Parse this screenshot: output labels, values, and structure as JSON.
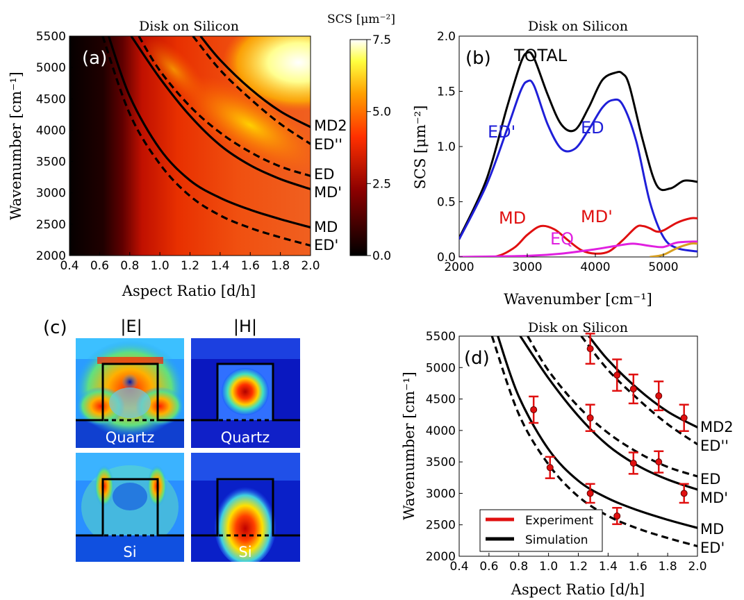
{
  "figure": {
    "width": 1071,
    "height": 864
  },
  "chart_data": [
    {
      "id": "a",
      "type": "heatmap",
      "panel_label": "(a)",
      "title": "Disk on Silicon",
      "xlabel": "Aspect Ratio [d/h]",
      "ylabel": "Wavenumber [cm⁻¹]",
      "xlim": [
        0.4,
        2.0
      ],
      "ylim": [
        2000,
        5500
      ],
      "xticks": [
        "0.4",
        "0.6",
        "0.8",
        "1.0",
        "1.2",
        "1.4",
        "1.6",
        "1.8",
        "2.0"
      ],
      "yticks": [
        "2000",
        "2500",
        "3000",
        "3500",
        "4000",
        "4500",
        "5000",
        "5500"
      ],
      "colorbar": {
        "title": "SCS [μm⁻²]",
        "min": 0.0,
        "max": 7.5,
        "ticks": [
          "0.0",
          "2.5",
          "5.0",
          "7.5"
        ]
      },
      "curves": [
        {
          "name": "MD2",
          "style": "solid",
          "points": [
            [
              1.27,
              5500
            ],
            [
              1.4,
              5120
            ],
            [
              1.6,
              4660
            ],
            [
              1.8,
              4300
            ],
            [
              2.0,
              4050
            ]
          ]
        },
        {
          "name": "ED''",
          "style": "dashed",
          "points": [
            [
              1.22,
              5500
            ],
            [
              1.4,
              4960
            ],
            [
              1.6,
              4500
            ],
            [
              1.8,
              4100
            ],
            [
              2.0,
              3780
            ]
          ]
        },
        {
          "name": "ED",
          "style": "dashed",
          "points": [
            [
              0.86,
              5500
            ],
            [
              1.0,
              4950
            ],
            [
              1.2,
              4380
            ],
            [
              1.4,
              3960
            ],
            [
              1.6,
              3650
            ],
            [
              1.8,
              3420
            ],
            [
              2.0,
              3270
            ]
          ]
        },
        {
          "name": "MD'",
          "style": "solid",
          "points": [
            [
              0.81,
              5500
            ],
            [
              1.0,
              4830
            ],
            [
              1.2,
              4230
            ],
            [
              1.4,
              3760
            ],
            [
              1.6,
              3440
            ],
            [
              1.8,
              3220
            ],
            [
              2.0,
              3060
            ]
          ]
        },
        {
          "name": "MD",
          "style": "solid",
          "points": [
            [
              0.66,
              5500
            ],
            [
              0.8,
              4540
            ],
            [
              1.0,
              3700
            ],
            [
              1.2,
              3200
            ],
            [
              1.4,
              2920
            ],
            [
              1.6,
              2730
            ],
            [
              1.8,
              2580
            ],
            [
              2.0,
              2450
            ]
          ]
        },
        {
          "name": "ED'",
          "style": "dashed",
          "points": [
            [
              0.62,
              5500
            ],
            [
              0.8,
              4260
            ],
            [
              1.0,
              3460
            ],
            [
              1.2,
              2950
            ],
            [
              1.4,
              2640
            ],
            [
              1.6,
              2440
            ],
            [
              1.8,
              2290
            ],
            [
              2.0,
              2160
            ]
          ]
        }
      ],
      "curve_labels": [
        "MD2",
        "ED''",
        "ED",
        "MD'",
        "MD",
        "ED'"
      ]
    },
    {
      "id": "b",
      "type": "line",
      "panel_label": "(b)",
      "title": "Disk on Silicon",
      "xlabel": "Wavenumber [cm⁻¹]",
      "ylabel": "SCS [μm⁻²]",
      "xlim": [
        2000,
        5500
      ],
      "ylim": [
        0.0,
        2.0
      ],
      "xticks": [
        "2000",
        "3000",
        "4000",
        "5000"
      ],
      "yticks": [
        "0.0",
        "0.5",
        "1.0",
        "1.5",
        "2.0"
      ],
      "series": [
        {
          "name": "TOTAL",
          "color": "#000000",
          "x": [
            2000,
            2400,
            2700,
            2900,
            3000,
            3100,
            3300,
            3500,
            3700,
            3900,
            4100,
            4300,
            4400,
            4500,
            4700,
            4900,
            5100,
            5300,
            5500
          ],
          "y": [
            0.17,
            0.7,
            1.35,
            1.75,
            1.85,
            1.8,
            1.47,
            1.2,
            1.15,
            1.35,
            1.6,
            1.67,
            1.66,
            1.55,
            1.05,
            0.65,
            0.62,
            0.69,
            0.68
          ]
        },
        {
          "name": "ED'",
          "color": "#1f1fd8",
          "x": [
            2000,
            2400,
            2700,
            2900,
            3000,
            3100,
            3300,
            3500,
            3700,
            3900,
            4100,
            4250,
            4400,
            4600,
            4800,
            5000,
            5200,
            5500
          ],
          "y": [
            0.16,
            0.65,
            1.15,
            1.5,
            1.59,
            1.55,
            1.2,
            0.98,
            0.98,
            1.15,
            1.35,
            1.42,
            1.38,
            1.05,
            0.5,
            0.18,
            0.08,
            0.05
          ]
        },
        {
          "name": "MD",
          "color": "#e01010",
          "x": [
            2000,
            2500,
            2800,
            3000,
            3200,
            3400,
            3600,
            3800,
            4000,
            4200,
            4400,
            4600,
            4700,
            4800,
            4900,
            5000,
            5200,
            5400,
            5500
          ],
          "y": [
            0.0,
            0.0,
            0.08,
            0.2,
            0.28,
            0.25,
            0.15,
            0.06,
            0.03,
            0.05,
            0.15,
            0.27,
            0.28,
            0.26,
            0.23,
            0.24,
            0.31,
            0.35,
            0.35
          ]
        },
        {
          "name": "EQ",
          "color": "#e020e0",
          "x": [
            2000,
            3000,
            3500,
            4000,
            4300,
            4550,
            4800,
            5000,
            5200,
            5500
          ],
          "y": [
            0.0,
            0.01,
            0.03,
            0.07,
            0.1,
            0.12,
            0.1,
            0.09,
            0.13,
            0.14
          ]
        },
        {
          "name": "",
          "color": "#d8a020",
          "x": [
            4800,
            5000,
            5200,
            5400,
            5500
          ],
          "y": [
            0.0,
            0.02,
            0.08,
            0.12,
            0.12
          ]
        }
      ],
      "labels": [
        {
          "text": "TOTAL",
          "color": "#000000"
        },
        {
          "text": "ED'",
          "color": "#1f1fd8"
        },
        {
          "text": "ED",
          "color": "#1f1fd8"
        },
        {
          "text": "MD",
          "color": "#e01010"
        },
        {
          "text": "MD'",
          "color": "#e01010"
        },
        {
          "text": "EQ",
          "color": "#e020e0"
        }
      ]
    },
    {
      "id": "d",
      "type": "scatter",
      "panel_label": "(d)",
      "title": "Disk on Silicon",
      "xlabel": "Aspect Ratio [d/h]",
      "ylabel": "Wavenumber [cm⁻¹]",
      "xlim": [
        0.4,
        2.0
      ],
      "ylim": [
        2000,
        5500
      ],
      "xticks": [
        "0.4",
        "0.6",
        "0.8",
        "1.0",
        "1.2",
        "1.4",
        "1.6",
        "1.8",
        "2.0"
      ],
      "yticks": [
        "2000",
        "2500",
        "3000",
        "3500",
        "4000",
        "4500",
        "5000",
        "5500"
      ],
      "experiment": [
        {
          "x": 0.9,
          "y": 4330,
          "err": 210
        },
        {
          "x": 1.01,
          "y": 3410,
          "err": 170
        },
        {
          "x": 1.28,
          "y": 5300,
          "err": 240
        },
        {
          "x": 1.28,
          "y": 4200,
          "err": 210
        },
        {
          "x": 1.28,
          "y": 3000,
          "err": 150
        },
        {
          "x": 1.46,
          "y": 4880,
          "err": 250
        },
        {
          "x": 1.46,
          "y": 2640,
          "err": 130
        },
        {
          "x": 1.57,
          "y": 4660,
          "err": 230
        },
        {
          "x": 1.57,
          "y": 3480,
          "err": 170
        },
        {
          "x": 1.74,
          "y": 4550,
          "err": 230
        },
        {
          "x": 1.74,
          "y": 3500,
          "err": 170
        },
        {
          "x": 1.91,
          "y": 4200,
          "err": 210
        },
        {
          "x": 1.91,
          "y": 3000,
          "err": 150
        }
      ],
      "curve_labels": [
        "MD2",
        "ED''",
        "ED",
        "MD'",
        "MD",
        "ED'"
      ],
      "legend": {
        "placement": "lower-left",
        "entries": [
          {
            "label": "Experiment",
            "color": "#e01010"
          },
          {
            "label": "Simulation",
            "color": "#000000"
          }
        ]
      }
    }
  ],
  "panel_c": {
    "label": "(c)",
    "col_titles": [
      "|E|",
      "|H|"
    ],
    "row_labels": [
      "Quartz",
      "Quartz",
      "Si",
      "Si"
    ]
  }
}
